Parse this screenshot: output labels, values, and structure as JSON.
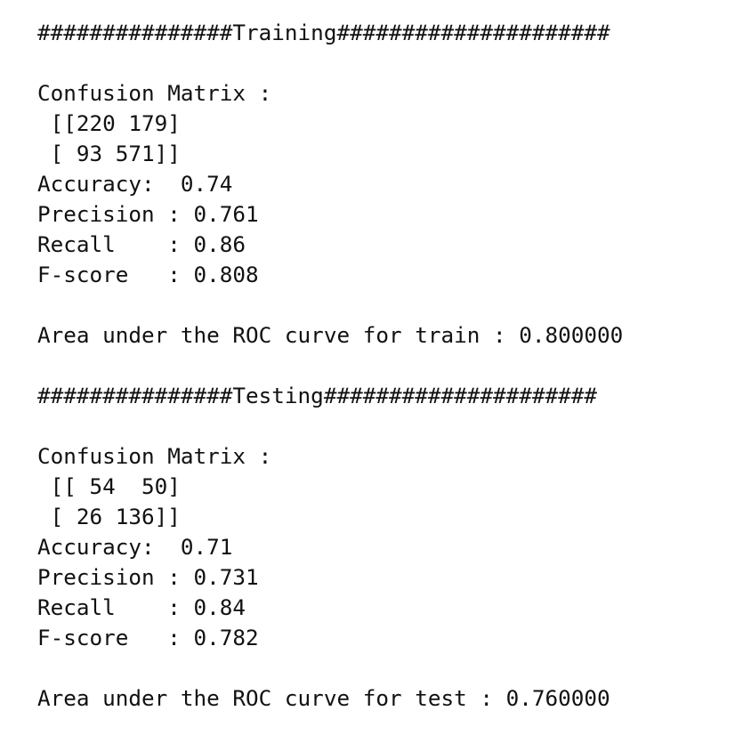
{
  "training": {
    "header": "###############Training#####################",
    "confusion_label": "Confusion Matrix :",
    "matrix_row_1": " [[220 179]",
    "matrix_row_2": " [ 93 571]]",
    "accuracy": "Accuracy:  0.74",
    "precision": "Precision : 0.761",
    "recall": "Recall    : 0.86",
    "fscore": "F-score   : 0.808",
    "roc": "Area under the ROC curve for train : 0.800000"
  },
  "testing": {
    "header": "###############Testing#####################",
    "confusion_label": "Confusion Matrix :",
    "matrix_row_1": " [[ 54  50]",
    "matrix_row_2": " [ 26 136]]",
    "accuracy": "Accuracy:  0.71",
    "precision": "Precision : 0.731",
    "recall": "Recall    : 0.84",
    "fscore": "F-score   : 0.782",
    "roc": "Area under the ROC curve for test : 0.760000"
  }
}
